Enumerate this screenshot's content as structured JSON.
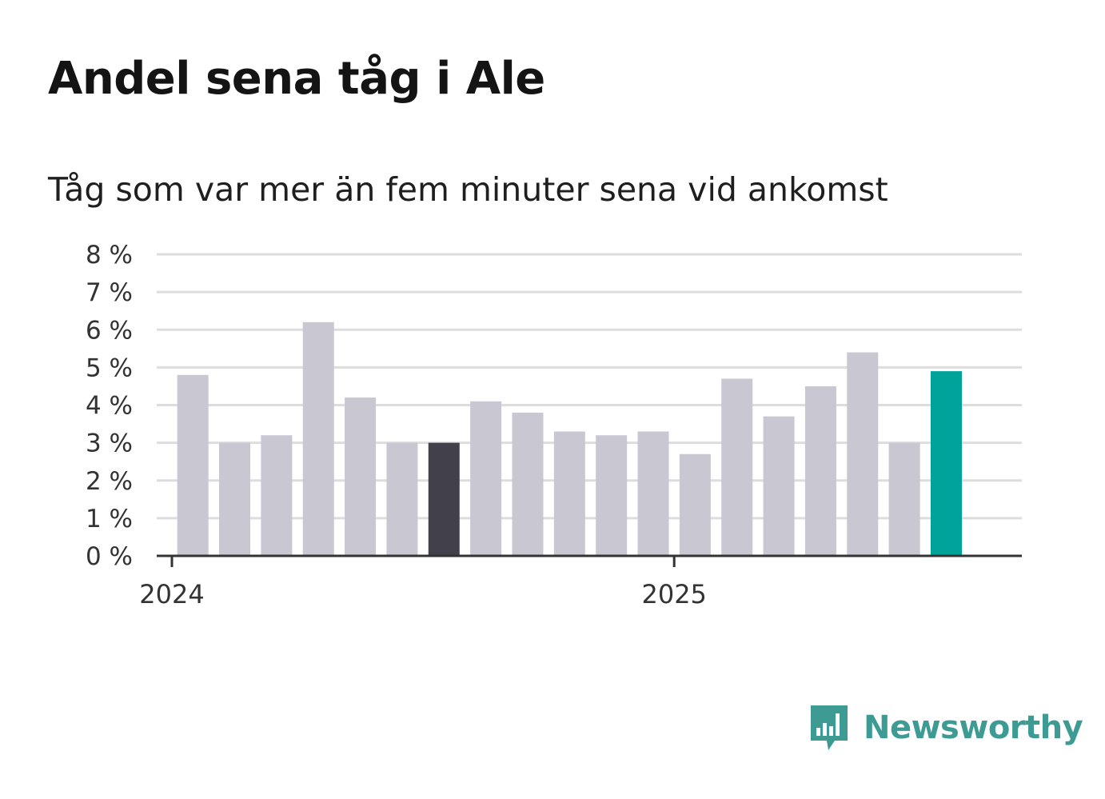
{
  "title": "Andel sena tåg i Ale",
  "subtitle": "Tåg som var mer än fem minuter sena vid ankomst",
  "brand": {
    "name": "Newsworthy",
    "icon": "newsworthy-logo-icon",
    "color": "#3d9b94"
  },
  "colors": {
    "bar": "#c8c7d2",
    "highlight_dark": "#42404a",
    "highlight_latest": "#00a39a",
    "grid": "#dddddd",
    "axis": "#333333"
  },
  "chart_data": {
    "type": "bar",
    "title": "Andel sena tåg i Ale",
    "subtitle": "Tåg som var mer än fem minuter sena vid ankomst",
    "xlabel": "",
    "ylabel": "",
    "ylim": [
      0,
      8
    ],
    "yticks": [
      "0 %",
      "1 %",
      "2 %",
      "3 %",
      "4 %",
      "5 %",
      "6 %",
      "7 %",
      "8 %"
    ],
    "xticks": [
      "2024",
      "2025"
    ],
    "grid": true,
    "categories": [
      "2024-01",
      "2024-02",
      "2024-03",
      "2024-04",
      "2024-05",
      "2024-06",
      "2024-07",
      "2024-08",
      "2024-09",
      "2024-10",
      "2024-11",
      "2024-12",
      "2025-01",
      "2025-02",
      "2025-03",
      "2025-04",
      "2025-05",
      "2025-06",
      "2025-07"
    ],
    "values": [
      4.8,
      3.0,
      3.2,
      6.2,
      4.2,
      3.0,
      3.0,
      4.1,
      3.8,
      3.3,
      3.2,
      3.3,
      2.7,
      4.7,
      3.7,
      4.5,
      5.4,
      3.0,
      4.9
    ],
    "highlight": {
      "2024-07": "dark",
      "2025-07": "latest"
    }
  }
}
